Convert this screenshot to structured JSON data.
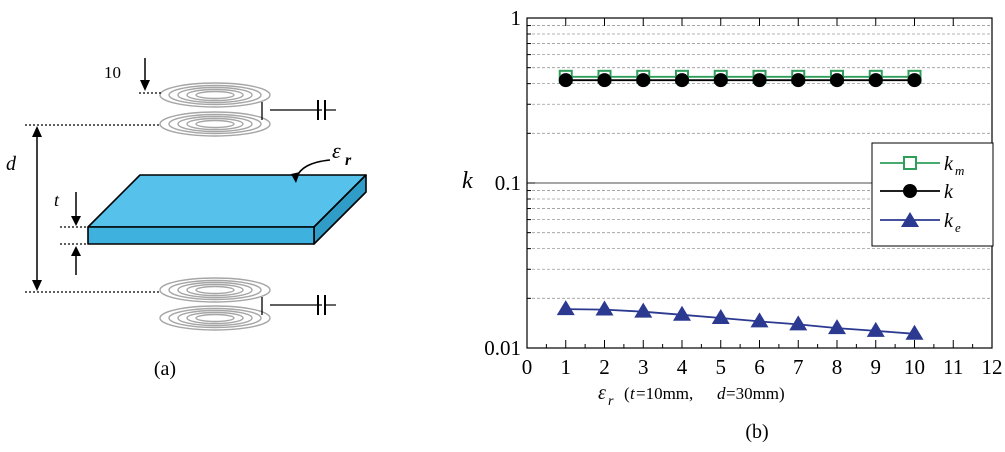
{
  "panel_a": {
    "caption": "(a)",
    "coil_gap_label": "10",
    "d_label": "d",
    "t_label": "t",
    "eps_symbol": "ε",
    "eps_sub": "r",
    "colors": {
      "slab": "#4fbce6",
      "coil": "#a6a6a6"
    }
  },
  "panel_b": {
    "caption": "(b)",
    "ylabel": "k",
    "xlabel": {
      "eps": "ε",
      "eps_sub": "r",
      "open": "(",
      "t_var": "t",
      "t_val": "=10mm, ",
      "d_var": "d",
      "d_val": "=30mm)"
    },
    "legend": [
      {
        "main": "k",
        "sub": "m",
        "color": "#2e9e5a",
        "marker": "square-open"
      },
      {
        "main": "k",
        "sub": "",
        "color": "#000000",
        "marker": "circle-filled"
      },
      {
        "main": "k",
        "sub": "e",
        "color": "#2b3990",
        "marker": "triangle-filled"
      }
    ]
  },
  "chart_data": {
    "type": "line",
    "title": "",
    "subtitle": "",
    "xlabel": "εr (t=10mm, d=30mm)",
    "ylabel": "k",
    "x": [
      1,
      2,
      3,
      4,
      5,
      6,
      7,
      8,
      9,
      10
    ],
    "xlim": [
      0,
      12
    ],
    "x_ticks": [
      0,
      1,
      2,
      3,
      4,
      5,
      6,
      7,
      8,
      9,
      10,
      11,
      12
    ],
    "ylim": [
      0.01,
      1
    ],
    "y_scale": "log",
    "y_ticks": [
      0.01,
      0.1,
      1
    ],
    "y_tick_labels": [
      "0.01",
      "0.1",
      "1"
    ],
    "grid": "horizontal dashed minor, solid major",
    "legend_position": "right-middle",
    "series": [
      {
        "name": "km",
        "color": "#2e9e5a",
        "marker": "square-open",
        "values": [
          0.44,
          0.44,
          0.44,
          0.44,
          0.44,
          0.44,
          0.44,
          0.44,
          0.44,
          0.44
        ]
      },
      {
        "name": "k",
        "color": "#000000",
        "marker": "circle-filled",
        "values": [
          0.42,
          0.42,
          0.42,
          0.42,
          0.42,
          0.42,
          0.42,
          0.42,
          0.42,
          0.42
        ]
      },
      {
        "name": "ke",
        "color": "#2b3990",
        "marker": "triangle-filled",
        "values": [
          0.0172,
          0.0171,
          0.0166,
          0.0159,
          0.0152,
          0.0145,
          0.0139,
          0.0132,
          0.0127,
          0.0122
        ]
      }
    ]
  }
}
